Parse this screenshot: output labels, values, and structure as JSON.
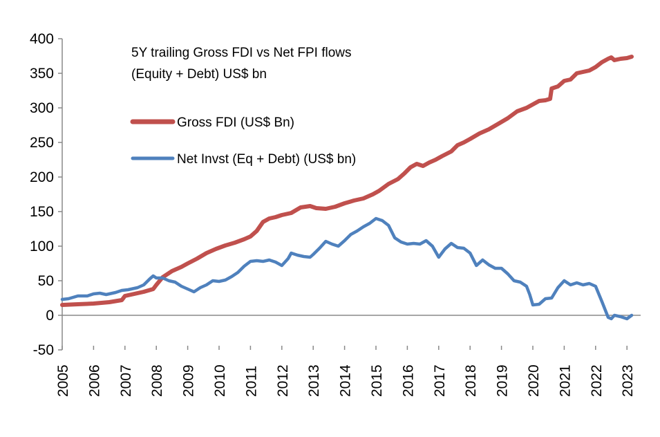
{
  "chart_data": {
    "type": "line",
    "title_line1": "5Y trailing Gross FDI vs Net FPI flows",
    "title_line2": "(Equity + Debt) US$ bn",
    "xlabel": "",
    "ylabel": "",
    "xlim": [
      2005,
      2023.2
    ],
    "ylim": [
      -50,
      400
    ],
    "y_ticks": [
      -50,
      0,
      50,
      100,
      150,
      200,
      250,
      300,
      350,
      400
    ],
    "x_ticks": [
      "2005",
      "2006",
      "2007",
      "2008",
      "2009",
      "2010",
      "2011",
      "2012",
      "2013",
      "2014",
      "2015",
      "2016",
      "2017",
      "2018",
      "2019",
      "2020",
      "2021",
      "2022",
      "2023"
    ],
    "series": [
      {
        "name": "Gross FDI (US$ Bn)",
        "color": "#c0504d",
        "points": [
          [
            2005,
            15
          ],
          [
            2005.5,
            16
          ],
          [
            2006,
            17
          ],
          [
            2006.5,
            19
          ],
          [
            2006.9,
            22
          ],
          [
            2007.0,
            28
          ],
          [
            2007.3,
            31
          ],
          [
            2007.6,
            34
          ],
          [
            2007.9,
            38
          ],
          [
            2008.0,
            44
          ],
          [
            2008.2,
            55
          ],
          [
            2008.5,
            64
          ],
          [
            2008.8,
            70
          ],
          [
            2009.0,
            75
          ],
          [
            2009.3,
            82
          ],
          [
            2009.6,
            90
          ],
          [
            2009.9,
            96
          ],
          [
            2010.2,
            101
          ],
          [
            2010.5,
            105
          ],
          [
            2010.8,
            110
          ],
          [
            2011.0,
            114
          ],
          [
            2011.2,
            122
          ],
          [
            2011.4,
            135
          ],
          [
            2011.6,
            140
          ],
          [
            2011.8,
            142
          ],
          [
            2012.0,
            145
          ],
          [
            2012.3,
            148
          ],
          [
            2012.6,
            156
          ],
          [
            2012.9,
            158
          ],
          [
            2013.1,
            155
          ],
          [
            2013.4,
            154
          ],
          [
            2013.7,
            157
          ],
          [
            2014.0,
            162
          ],
          [
            2014.3,
            166
          ],
          [
            2014.6,
            169
          ],
          [
            2014.9,
            175
          ],
          [
            2015.1,
            180
          ],
          [
            2015.4,
            190
          ],
          [
            2015.7,
            197
          ],
          [
            2015.9,
            205
          ],
          [
            2016.1,
            214
          ],
          [
            2016.3,
            219
          ],
          [
            2016.5,
            216
          ],
          [
            2016.7,
            221
          ],
          [
            2016.9,
            225
          ],
          [
            2017.1,
            230
          ],
          [
            2017.4,
            237
          ],
          [
            2017.6,
            246
          ],
          [
            2017.8,
            250
          ],
          [
            2018.0,
            255
          ],
          [
            2018.3,
            263
          ],
          [
            2018.6,
            269
          ],
          [
            2018.9,
            277
          ],
          [
            2019.2,
            285
          ],
          [
            2019.5,
            295
          ],
          [
            2019.8,
            300
          ],
          [
            2020.0,
            305
          ],
          [
            2020.2,
            310
          ],
          [
            2020.4,
            311
          ],
          [
            2020.55,
            313
          ],
          [
            2020.6,
            328
          ],
          [
            2020.8,
            331
          ],
          [
            2021.0,
            339
          ],
          [
            2021.2,
            341
          ],
          [
            2021.4,
            350
          ],
          [
            2021.6,
            352
          ],
          [
            2021.8,
            354
          ],
          [
            2022.0,
            359
          ],
          [
            2022.2,
            366
          ],
          [
            2022.4,
            371
          ],
          [
            2022.5,
            373
          ],
          [
            2022.6,
            369
          ],
          [
            2022.8,
            371
          ],
          [
            2023.0,
            372
          ],
          [
            2023.15,
            374
          ]
        ]
      },
      {
        "name": "Net Invst (Eq + Debt) (US$ bn)",
        "color": "#4f81bd",
        "points": [
          [
            2005,
            23
          ],
          [
            2005.2,
            24
          ],
          [
            2005.5,
            28
          ],
          [
            2005.8,
            28
          ],
          [
            2006.0,
            31
          ],
          [
            2006.2,
            32
          ],
          [
            2006.4,
            30
          ],
          [
            2006.7,
            33
          ],
          [
            2006.9,
            36
          ],
          [
            2007.1,
            37
          ],
          [
            2007.4,
            40
          ],
          [
            2007.6,
            44
          ],
          [
            2007.8,
            53
          ],
          [
            2007.9,
            57
          ],
          [
            2008.0,
            54
          ],
          [
            2008.2,
            54
          ],
          [
            2008.4,
            50
          ],
          [
            2008.6,
            48
          ],
          [
            2008.8,
            42
          ],
          [
            2009.0,
            38
          ],
          [
            2009.1,
            36
          ],
          [
            2009.2,
            34
          ],
          [
            2009.4,
            40
          ],
          [
            2009.6,
            44
          ],
          [
            2009.8,
            50
          ],
          [
            2010.0,
            49
          ],
          [
            2010.2,
            51
          ],
          [
            2010.4,
            56
          ],
          [
            2010.6,
            62
          ],
          [
            2010.8,
            71
          ],
          [
            2011.0,
            78
          ],
          [
            2011.2,
            79
          ],
          [
            2011.4,
            78
          ],
          [
            2011.6,
            80
          ],
          [
            2011.8,
            77
          ],
          [
            2012.0,
            72
          ],
          [
            2012.2,
            82
          ],
          [
            2012.3,
            90
          ],
          [
            2012.5,
            87
          ],
          [
            2012.7,
            85
          ],
          [
            2012.9,
            84
          ],
          [
            2013.0,
            88
          ],
          [
            2013.2,
            97
          ],
          [
            2013.4,
            107
          ],
          [
            2013.6,
            103
          ],
          [
            2013.8,
            100
          ],
          [
            2014.0,
            108
          ],
          [
            2014.2,
            117
          ],
          [
            2014.4,
            122
          ],
          [
            2014.6,
            128
          ],
          [
            2014.8,
            133
          ],
          [
            2015.0,
            140
          ],
          [
            2015.2,
            137
          ],
          [
            2015.4,
            130
          ],
          [
            2015.6,
            112
          ],
          [
            2015.8,
            106
          ],
          [
            2016.0,
            103
          ],
          [
            2016.2,
            104
          ],
          [
            2016.4,
            103
          ],
          [
            2016.6,
            108
          ],
          [
            2016.8,
            100
          ],
          [
            2017.0,
            84
          ],
          [
            2017.2,
            96
          ],
          [
            2017.4,
            104
          ],
          [
            2017.6,
            98
          ],
          [
            2017.8,
            97
          ],
          [
            2018.0,
            90
          ],
          [
            2018.2,
            72
          ],
          [
            2018.4,
            80
          ],
          [
            2018.6,
            73
          ],
          [
            2018.8,
            68
          ],
          [
            2019.0,
            68
          ],
          [
            2019.2,
            60
          ],
          [
            2019.4,
            50
          ],
          [
            2019.6,
            48
          ],
          [
            2019.8,
            42
          ],
          [
            2019.9,
            30
          ],
          [
            2020.0,
            15
          ],
          [
            2020.2,
            16
          ],
          [
            2020.4,
            24
          ],
          [
            2020.6,
            25
          ],
          [
            2020.8,
            40
          ],
          [
            2021.0,
            50
          ],
          [
            2021.2,
            44
          ],
          [
            2021.4,
            47
          ],
          [
            2021.6,
            44
          ],
          [
            2021.8,
            46
          ],
          [
            2022.0,
            42
          ],
          [
            2022.2,
            20
          ],
          [
            2022.4,
            -3
          ],
          [
            2022.5,
            -5
          ],
          [
            2022.6,
            0
          ],
          [
            2022.8,
            -2
          ],
          [
            2023.0,
            -5
          ],
          [
            2023.15,
            0
          ]
        ]
      }
    ]
  }
}
